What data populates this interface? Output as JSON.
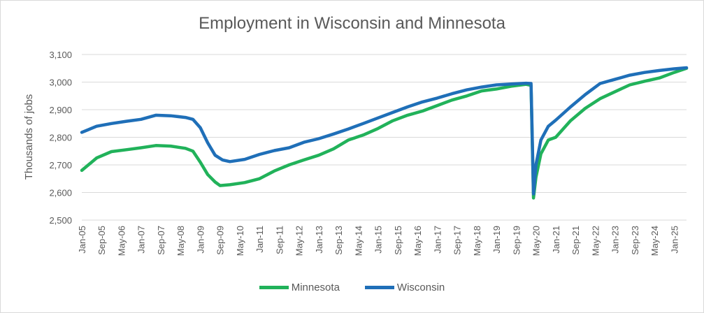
{
  "chart_data": {
    "type": "line",
    "title": "Employment in Wisconsin and Minnesota",
    "xlabel": "",
    "ylabel": "Thousands of jobs",
    "ylim": [
      2500,
      3100
    ],
    "yticks": [
      "2,500",
      "2,600",
      "2,700",
      "2,800",
      "2,900",
      "3,000",
      "3,100"
    ],
    "xticks": [
      "Jan-05",
      "Sep-05",
      "May-06",
      "Jan-07",
      "Sep-07",
      "May-08",
      "Jan-09",
      "Sep-09",
      "May-10",
      "Jan-11",
      "Sep-11",
      "May-12",
      "Jan-13",
      "Sep-13",
      "May-14",
      "Jan-15",
      "Sep-15",
      "May-16",
      "Jan-17",
      "Sep-17",
      "May-18",
      "Jan-19",
      "Sep-19",
      "May-20",
      "Jan-21",
      "Sep-21",
      "May-22",
      "Jan-23",
      "Sep-23",
      "May-24",
      "Jan-25"
    ],
    "x_start": "Jan-05",
    "x_end": "Jun-25",
    "grid": "horizontal",
    "legend": "bottom",
    "series": [
      {
        "name": "Minnesota",
        "color": "#21b25a",
        "points": [
          [
            "Jan-05",
            2680
          ],
          [
            "Jul-05",
            2725
          ],
          [
            "Jan-06",
            2748
          ],
          [
            "Jul-06",
            2755
          ],
          [
            "Jan-07",
            2762
          ],
          [
            "Jul-07",
            2770
          ],
          [
            "Jan-08",
            2768
          ],
          [
            "Jul-08",
            2760
          ],
          [
            "Oct-08",
            2750
          ],
          [
            "Jan-09",
            2710
          ],
          [
            "Apr-09",
            2665
          ],
          [
            "Jul-09",
            2638
          ],
          [
            "Sep-09",
            2625
          ],
          [
            "Jan-10",
            2628
          ],
          [
            "Jul-10",
            2636
          ],
          [
            "Jan-11",
            2650
          ],
          [
            "Jul-11",
            2678
          ],
          [
            "Jan-12",
            2700
          ],
          [
            "Jul-12",
            2718
          ],
          [
            "Jan-13",
            2735
          ],
          [
            "Jul-13",
            2758
          ],
          [
            "Jan-14",
            2790
          ],
          [
            "Jul-14",
            2808
          ],
          [
            "Jan-15",
            2832
          ],
          [
            "Jul-15",
            2860
          ],
          [
            "Jan-16",
            2880
          ],
          [
            "Jul-16",
            2895
          ],
          [
            "Jan-17",
            2915
          ],
          [
            "Jul-17",
            2935
          ],
          [
            "Jan-18",
            2950
          ],
          [
            "Jul-18",
            2968
          ],
          [
            "Jan-19",
            2975
          ],
          [
            "Jul-19",
            2985
          ],
          [
            "Jan-20",
            2992
          ],
          [
            "Mar-20",
            2988
          ],
          [
            "Apr-20",
            2580
          ],
          [
            "May-20",
            2655
          ],
          [
            "Jul-20",
            2740
          ],
          [
            "Oct-20",
            2790
          ],
          [
            "Jan-21",
            2800
          ],
          [
            "Jul-21",
            2860
          ],
          [
            "Jan-22",
            2905
          ],
          [
            "Jul-22",
            2940
          ],
          [
            "Jan-23",
            2965
          ],
          [
            "Jul-23",
            2990
          ],
          [
            "Jan-24",
            3003
          ],
          [
            "Jul-24",
            3015
          ],
          [
            "Jan-25",
            3035
          ],
          [
            "Jun-25",
            3050
          ]
        ]
      },
      {
        "name": "Wisconsin",
        "color": "#1f6fb8",
        "points": [
          [
            "Jan-05",
            2818
          ],
          [
            "Jul-05",
            2840
          ],
          [
            "Jan-06",
            2850
          ],
          [
            "Jul-06",
            2858
          ],
          [
            "Jan-07",
            2865
          ],
          [
            "Jul-07",
            2880
          ],
          [
            "Jan-08",
            2878
          ],
          [
            "Jul-08",
            2872
          ],
          [
            "Oct-08",
            2865
          ],
          [
            "Jan-09",
            2835
          ],
          [
            "Apr-09",
            2780
          ],
          [
            "Jul-09",
            2735
          ],
          [
            "Oct-09",
            2718
          ],
          [
            "Jan-10",
            2712
          ],
          [
            "Jul-10",
            2720
          ],
          [
            "Jan-11",
            2738
          ],
          [
            "Jul-11",
            2752
          ],
          [
            "Jan-12",
            2762
          ],
          [
            "Jul-12",
            2782
          ],
          [
            "Jan-13",
            2795
          ],
          [
            "Jul-13",
            2812
          ],
          [
            "Jan-14",
            2830
          ],
          [
            "Jul-14",
            2850
          ],
          [
            "Jan-15",
            2870
          ],
          [
            "Jul-15",
            2890
          ],
          [
            "Jan-16",
            2910
          ],
          [
            "Jul-16",
            2928
          ],
          [
            "Jan-17",
            2942
          ],
          [
            "Jul-17",
            2958
          ],
          [
            "Jan-18",
            2972
          ],
          [
            "Jul-18",
            2982
          ],
          [
            "Jan-19",
            2990
          ],
          [
            "Jul-19",
            2993
          ],
          [
            "Jan-20",
            2996
          ],
          [
            "Mar-20",
            2995
          ],
          [
            "Apr-20",
            2595
          ],
          [
            "May-20",
            2700
          ],
          [
            "Jul-20",
            2790
          ],
          [
            "Oct-20",
            2840
          ],
          [
            "Jan-21",
            2862
          ],
          [
            "Jul-21",
            2910
          ],
          [
            "Jan-22",
            2955
          ],
          [
            "Jul-22",
            2995
          ],
          [
            "Jan-23",
            3010
          ],
          [
            "Jul-23",
            3025
          ],
          [
            "Jan-24",
            3035
          ],
          [
            "Jul-24",
            3042
          ],
          [
            "Jan-25",
            3048
          ],
          [
            "Jun-25",
            3052
          ]
        ]
      }
    ]
  }
}
